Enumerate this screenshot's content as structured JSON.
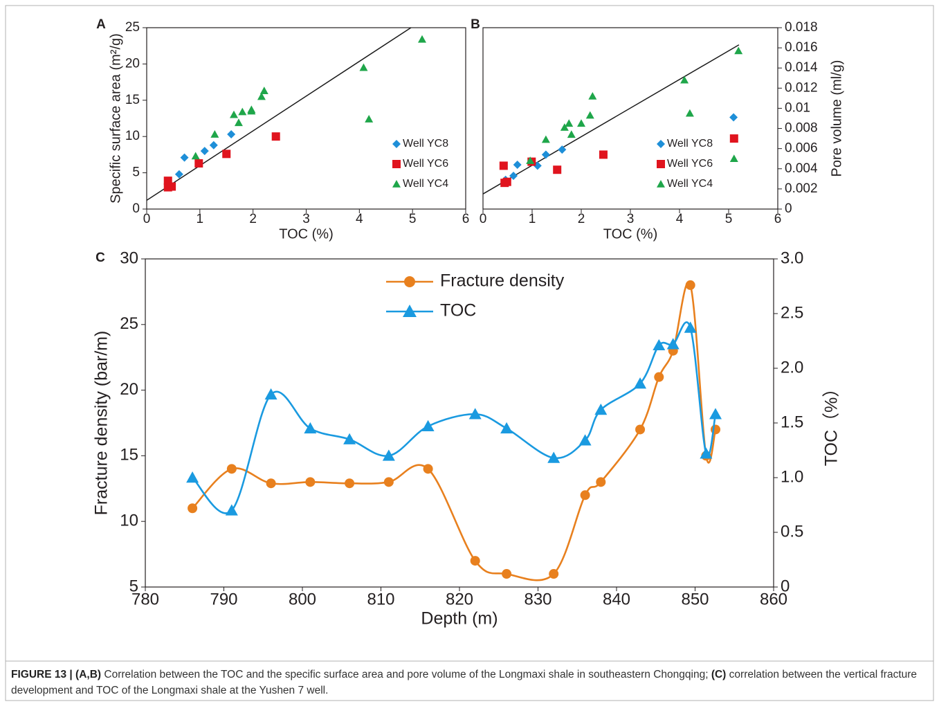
{
  "chart_data": [
    {
      "type": "scatter",
      "panel": "A",
      "xlabel": "TOC (%)",
      "ylabel": "Specific surface area (m²/g)",
      "xlim": [
        0,
        6
      ],
      "xticks": [
        0,
        1,
        2,
        3,
        4,
        5,
        6
      ],
      "ylim": [
        0,
        25
      ],
      "yticks": [
        0,
        5,
        10,
        15,
        20,
        25
      ],
      "legend": "lower right",
      "trendline": {
        "x": [
          0,
          4.97
        ],
        "y": [
          1.2,
          25
        ],
        "color": "#1a1a1a"
      },
      "series": [
        {
          "name": "Well YC8",
          "color": "#1e8fd8",
          "marker": "diamond",
          "x": [
            0.61,
            0.71,
            1.09,
            1.26,
            1.59
          ],
          "values": [
            4.8,
            7.1,
            8.0,
            8.8,
            10.3
          ]
        },
        {
          "name": "Well YC6",
          "color": "#e0141e",
          "marker": "square",
          "x": [
            0.4,
            0.4,
            0.47,
            0.98,
            1.5,
            2.43
          ],
          "values": [
            3.9,
            3.0,
            3.1,
            6.3,
            7.6,
            10.0
          ]
        },
        {
          "name": "Well YC4",
          "color": "#1fa64a",
          "marker": "triangle",
          "x": [
            0.92,
            1.28,
            1.64,
            1.73,
            1.8,
            1.97,
            1.97,
            2.16,
            2.21,
            4.08,
            4.18,
            5.18
          ],
          "values": [
            7.3,
            10.3,
            13.0,
            11.9,
            13.4,
            13.5,
            13.7,
            15.5,
            16.3,
            19.5,
            12.4,
            23.4
          ]
        }
      ]
    },
    {
      "type": "scatter",
      "panel": "B",
      "xlabel": "TOC (%)",
      "ylabel": "Pore volume (ml/g)",
      "yaxis_side": "right",
      "xlim": [
        0,
        6
      ],
      "xticks": [
        0,
        1,
        2,
        3,
        4,
        5,
        6
      ],
      "ylim": [
        0,
        0.018
      ],
      "yticks": [
        0,
        0.002,
        0.004,
        0.006,
        0.008,
        0.01,
        0.012,
        0.014,
        0.016,
        0.018
      ],
      "legend": "lower right",
      "trendline": {
        "x": [
          0,
          5.21
        ],
        "y": [
          0.0015,
          0.0163
        ],
        "color": "#1a1a1a"
      },
      "series": [
        {
          "name": "Well YC8",
          "color": "#1e8fd8",
          "marker": "diamond",
          "x": [
            0.46,
            0.62,
            0.7,
            1.11,
            1.28,
            1.61,
            5.1
          ],
          "values": [
            0.0029,
            0.0033,
            0.0044,
            0.0043,
            0.0054,
            0.0059,
            0.0091
          ]
        },
        {
          "name": "Well YC6",
          "color": "#e0141e",
          "marker": "square",
          "x": [
            0.42,
            0.44,
            0.49,
            0.99,
            1.51,
            2.45,
            5.11
          ],
          "values": [
            0.0043,
            0.0026,
            0.0027,
            0.0047,
            0.0039,
            0.0054,
            0.007
          ]
        },
        {
          "name": "Well YC4",
          "color": "#1fa64a",
          "marker": "triangle",
          "x": [
            0.96,
            1.28,
            1.66,
            1.75,
            1.8,
            2.0,
            2.18,
            2.23,
            4.1,
            4.21,
            5.11,
            5.2
          ],
          "values": [
            0.0048,
            0.0069,
            0.0081,
            0.0085,
            0.0074,
            0.0085,
            0.0093,
            0.0112,
            0.0128,
            0.0095,
            0.005,
            0.0157
          ]
        }
      ]
    },
    {
      "type": "line",
      "panel": "C",
      "xlabel": "Depth (m)",
      "ylabel": "Fracture density (bar/m)",
      "y2label": "TOC（%）",
      "smooth": true,
      "legend": "upper center",
      "xlim": [
        780,
        860
      ],
      "xticks": [
        780,
        790,
        800,
        810,
        820,
        830,
        840,
        850,
        860
      ],
      "ylim": [
        5,
        30
      ],
      "yticks": [
        5,
        10,
        15,
        20,
        25,
        30
      ],
      "y2lim": [
        0,
        3
      ],
      "y2ticks": [
        0,
        0.5,
        {
          "value": 1,
          "label": "1.0"
        },
        1.5,
        {
          "value": 2,
          "label": "2.0"
        },
        2.5,
        {
          "value": 3,
          "label": "3.0"
        }
      ],
      "x": [
        786,
        791,
        796,
        801,
        806,
        811,
        816,
        822,
        826,
        832,
        836,
        838,
        843,
        845.4,
        847.2,
        849.4,
        851.4,
        852.6
      ],
      "series": [
        {
          "name": "Fracture density",
          "color": "#e8801e",
          "marker": "circle",
          "values": [
            11,
            14,
            12.9,
            13,
            12.9,
            13,
            14,
            7,
            6,
            6,
            12,
            13,
            17,
            21,
            23,
            28,
            15,
            17
          ]
        },
        {
          "name": "TOC",
          "color": "#1a9ae0",
          "marker": "triangle",
          "axis": "y2",
          "values": [
            1.0,
            0.7,
            1.76,
            1.45,
            1.35,
            1.2,
            1.47,
            1.58,
            1.45,
            1.18,
            1.34,
            1.62,
            1.86,
            2.21,
            2.22,
            2.37,
            1.22,
            1.58
          ]
        }
      ]
    }
  ],
  "caption": [
    "FIGURE 13 | (A,B)",
    " Correlation between the TOC and the specific surface area and pore volume of the Longmaxi shale in southeastern Chongqing; ",
    "(C)",
    " correlation between the vertical fracture development and TOC of the Longmaxi shale at the Yushen 7 well."
  ]
}
